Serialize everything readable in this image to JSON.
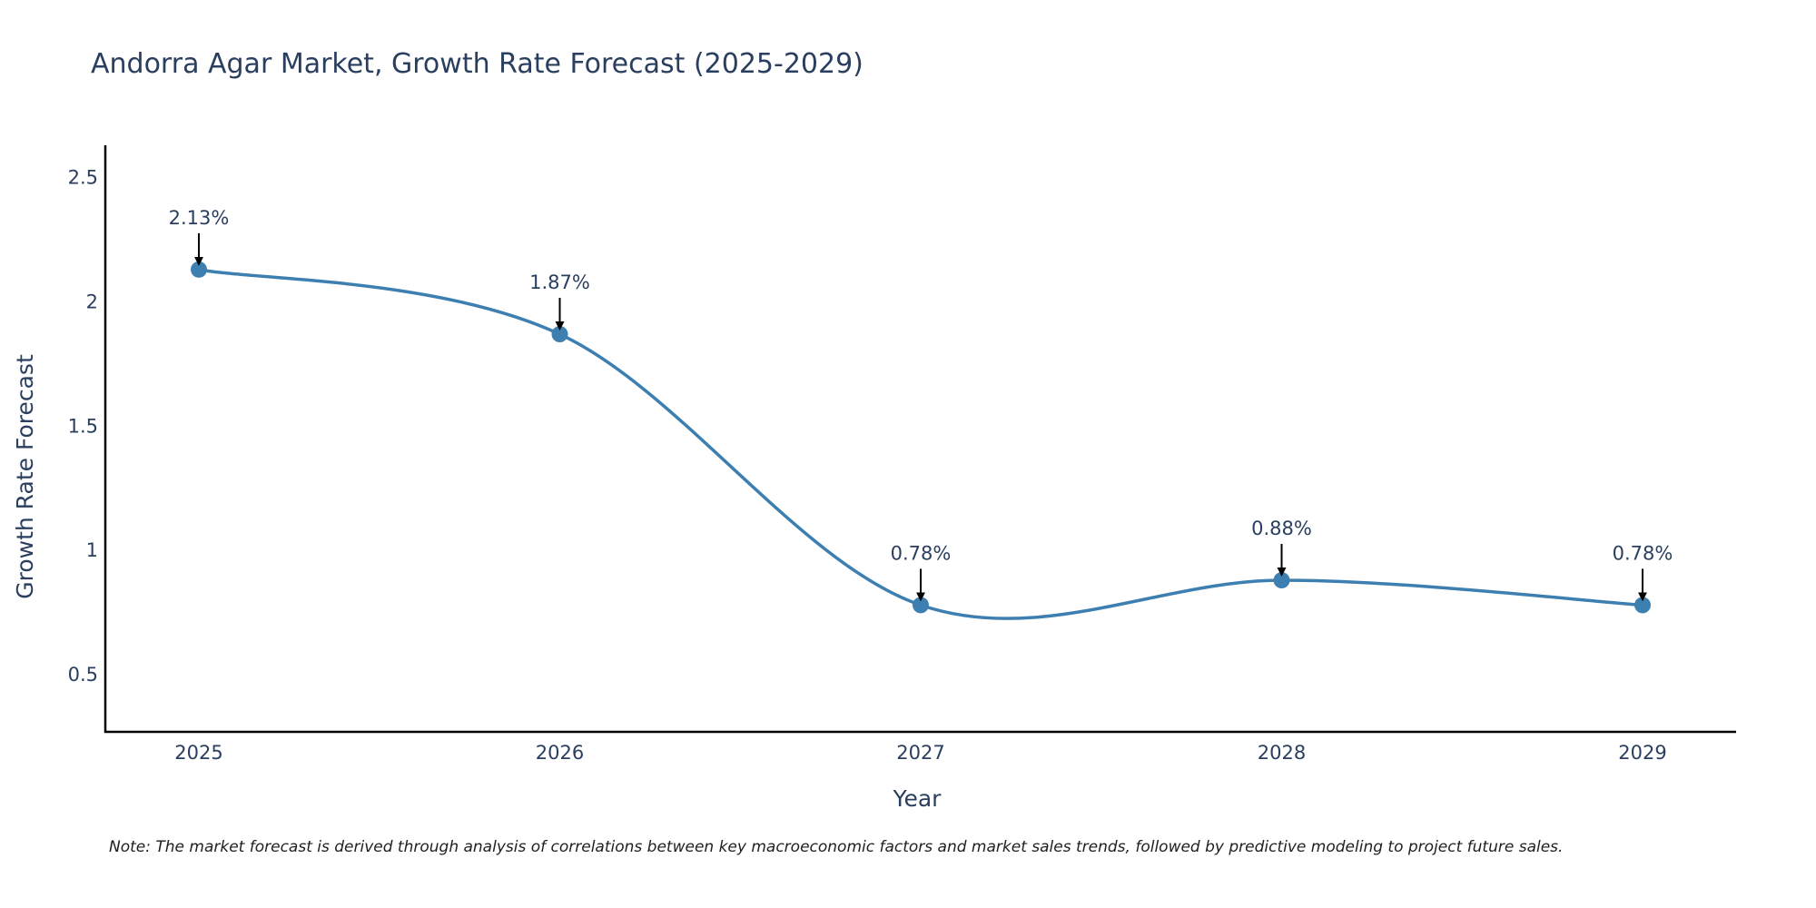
{
  "chart_data": {
    "type": "line",
    "title": "Andorra Agar Market, Growth Rate Forecast (2025-2029)",
    "xlabel": "Year",
    "ylabel": "Growth Rate Forecast",
    "categories": [
      "2025",
      "2026",
      "2027",
      "2028",
      "2029"
    ],
    "values": [
      2.13,
      1.87,
      0.78,
      0.88,
      0.78
    ],
    "data_labels": [
      "2.13%",
      "1.87%",
      "0.78%",
      "0.88%",
      "0.78%"
    ],
    "y_ticks": [
      0.5,
      1,
      1.5,
      2,
      2.5
    ],
    "y_tick_labels": [
      "0.5",
      "1",
      "1.5",
      "2",
      "2.5"
    ],
    "ylim": [
      0.27,
      2.63
    ],
    "grid": false,
    "line_shape": "spline",
    "line_color": "#3d7fb0",
    "marker_color": "#3d7fb0",
    "annotation_arrow_color": "#000000",
    "note": "Note: The market forecast is derived through analysis of correlations between key macroeconomic factors and market sales trends, followed by predictive modeling to project future sales."
  }
}
